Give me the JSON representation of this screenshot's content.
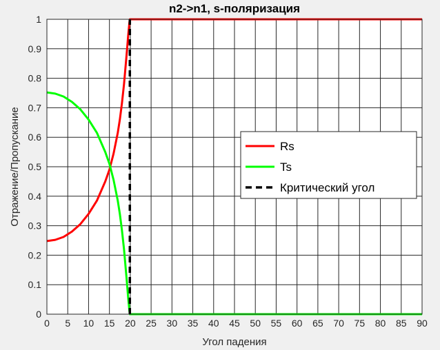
{
  "chart_data": {
    "type": "line",
    "title": "n2->n1, s-поляризация",
    "xlabel": "Угол падения",
    "ylabel": "Отражение/Пропускание",
    "xlim": [
      0,
      90
    ],
    "ylim": [
      0,
      1
    ],
    "xticks": [
      "0",
      "5",
      "10",
      "15",
      "20",
      "25",
      "30",
      "35",
      "40",
      "45",
      "50",
      "55",
      "60",
      "65",
      "70",
      "75",
      "80",
      "85",
      "90"
    ],
    "yticks": [
      "0",
      "0.1",
      "0.2",
      "0.3",
      "0.4",
      "0.5",
      "0.6",
      "0.7",
      "0.8",
      "0.9",
      "1"
    ],
    "grid": true,
    "legend_position": "right",
    "series": [
      {
        "name": "Rs",
        "color": "#ff0000",
        "style": "solid",
        "x": [
          0,
          2,
          4,
          6,
          8,
          10,
          12,
          14,
          15,
          16,
          17,
          17.5,
          18,
          18.5,
          19,
          19.3,
          19.5,
          19.7,
          19.8,
          19.9,
          20,
          25,
          30,
          35,
          40,
          45,
          50,
          55,
          60,
          65,
          70,
          75,
          80,
          85,
          90
        ],
        "y": [
          0.248,
          0.252,
          0.262,
          0.28,
          0.305,
          0.34,
          0.385,
          0.45,
          0.49,
          0.545,
          0.615,
          0.66,
          0.715,
          0.78,
          0.86,
          0.91,
          0.945,
          0.975,
          0.99,
          1.0,
          1,
          1,
          1,
          1,
          1,
          1,
          1,
          1,
          1,
          1,
          1,
          1,
          1,
          1,
          1
        ]
      },
      {
        "name": "Ts",
        "color": "#00ff00",
        "style": "solid",
        "x": [
          0,
          2,
          4,
          6,
          8,
          10,
          12,
          14,
          15,
          16,
          17,
          17.5,
          18,
          18.5,
          19,
          19.3,
          19.5,
          19.7,
          19.8,
          19.9,
          20,
          25,
          30,
          35,
          40,
          45,
          50,
          55,
          60,
          65,
          70,
          75,
          80,
          85,
          90
        ],
        "y": [
          0.752,
          0.748,
          0.738,
          0.72,
          0.695,
          0.66,
          0.615,
          0.55,
          0.51,
          0.455,
          0.385,
          0.34,
          0.285,
          0.22,
          0.14,
          0.09,
          0.055,
          0.025,
          0.01,
          0.0,
          0,
          0,
          0,
          0,
          0,
          0,
          0,
          0,
          0,
          0,
          0,
          0,
          0,
          0,
          0
        ]
      },
      {
        "name": "Критический угол",
        "color": "#000000",
        "style": "dashed",
        "x": [
          19.9,
          19.9
        ],
        "y": [
          0,
          1
        ]
      }
    ]
  }
}
